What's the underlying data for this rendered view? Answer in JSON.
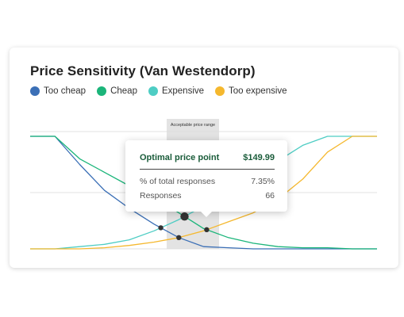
{
  "chart_data": {
    "type": "line",
    "title": "Price Sensitivity (Van Westendorp)",
    "range_label": "Acceptable price range",
    "x": [
      0,
      1,
      2,
      3,
      4,
      5,
      6,
      7,
      8,
      9,
      10,
      11,
      12,
      13,
      14
    ],
    "ylim": [
      0,
      100
    ],
    "series": [
      {
        "name": "Too cheap",
        "color": "#3b6fb6",
        "values": [
          100,
          100,
          75,
          52,
          36,
          22,
          10,
          2,
          1,
          0,
          0,
          0,
          0,
          0,
          0
        ]
      },
      {
        "name": "Cheap",
        "color": "#1bb57a",
        "values": [
          100,
          100,
          80,
          68,
          56,
          46,
          32,
          18,
          10,
          5,
          2,
          1,
          1,
          0,
          0
        ]
      },
      {
        "name": "Expensive",
        "color": "#4ecdc4",
        "values": [
          0,
          0,
          2,
          4,
          8,
          16,
          26,
          38,
          52,
          64,
          78,
          92,
          100,
          100,
          100
        ]
      },
      {
        "name": "Too expensive",
        "color": "#f5b82e",
        "values": [
          0,
          0,
          0,
          1,
          3,
          6,
          10,
          16,
          24,
          32,
          44,
          62,
          86,
          100,
          100
        ]
      }
    ],
    "grid": true,
    "legend_position": "top-left"
  },
  "tooltip": {
    "heading": "Optimal price point",
    "heading_value": "$149.99",
    "rows": [
      {
        "label": "% of total responses",
        "value": "7.35%"
      },
      {
        "label": "Responses",
        "value": "66"
      }
    ]
  }
}
